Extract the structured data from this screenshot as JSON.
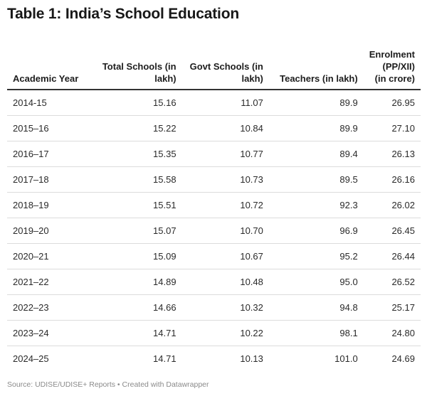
{
  "title": "Table 1: India’s School Education",
  "table": {
    "headers": [
      "Academic Year",
      "Total Schools (in lakh)",
      "Govt Schools (in lakh)",
      "Teachers (in lakh)",
      "Enrolment (PP/XII) (in crore)"
    ],
    "rows": [
      [
        "2014-15",
        "15.16",
        "11.07",
        "89.9",
        "26.95"
      ],
      [
        "2015–16",
        "15.22",
        "10.84",
        "89.9",
        "27.10"
      ],
      [
        "2016–17",
        "15.35",
        "10.77",
        "89.4",
        "26.13"
      ],
      [
        "2017–18",
        "15.58",
        "10.73",
        "89.5",
        "26.16"
      ],
      [
        "2018–19",
        "15.51",
        "10.72",
        "92.3",
        "26.02"
      ],
      [
        "2019–20",
        "15.07",
        "10.70",
        "96.9",
        "26.45"
      ],
      [
        "2020–21",
        "15.09",
        "10.67",
        "95.2",
        "26.44"
      ],
      [
        "2021–22",
        "14.89",
        "10.48",
        "95.0",
        "26.52"
      ],
      [
        "2022–23",
        "14.66",
        "10.32",
        "94.8",
        "25.17"
      ],
      [
        "2023–24",
        "14.71",
        "10.22",
        "98.1",
        "24.80"
      ],
      [
        "2024–25",
        "14.71",
        "10.13",
        "101.0",
        "24.69"
      ]
    ]
  },
  "source": "Source: UDISE/UDISE+ Reports • Created with Datawrapper"
}
